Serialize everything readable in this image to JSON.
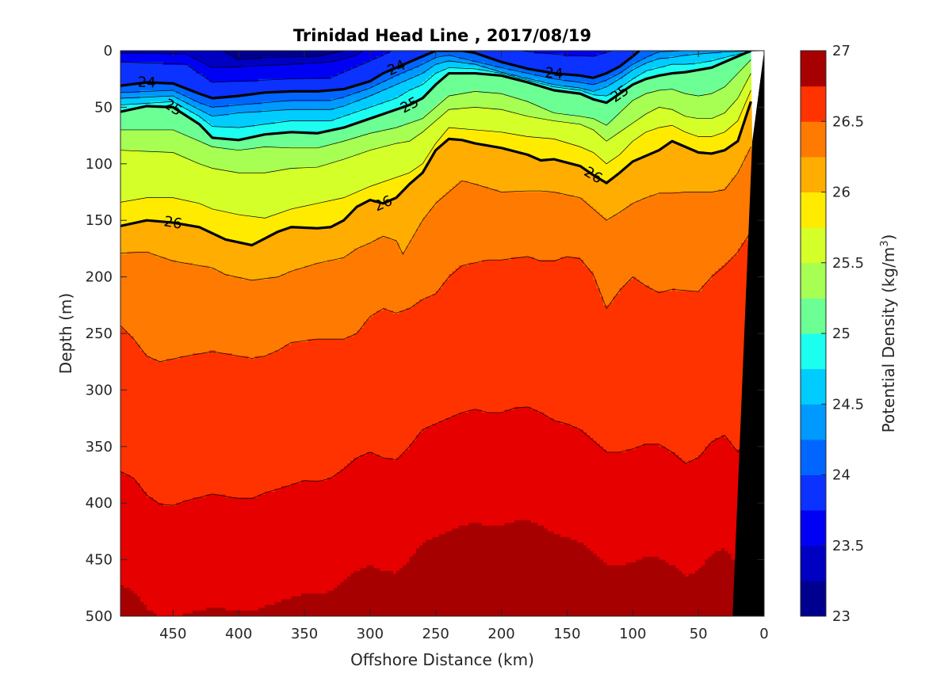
{
  "chart_data": {
    "type": "contourf",
    "title": "Trinidad Head Line , 2017/08/19",
    "xlabel": "Offshore Distance (km)",
    "ylabel": "Depth (m)",
    "colorbar_label": "Potential Density (kg/m³)",
    "colorbar_label_base": "Potential Density (kg/m",
    "colorbar_label_sup": "3",
    "colorbar_label_close": ")",
    "xlim": [
      490,
      0
    ],
    "ylim": [
      0,
      500
    ],
    "y_reversed": true,
    "x_reversed": true,
    "xticks": [
      450,
      400,
      350,
      300,
      250,
      200,
      150,
      100,
      50,
      0
    ],
    "yticks": [
      0,
      50,
      100,
      150,
      200,
      250,
      300,
      350,
      400,
      450,
      500
    ],
    "clim": [
      23,
      27
    ],
    "colorbar_ticks": [
      "23",
      "23.5",
      "24",
      "24.5",
      "25",
      "25.5",
      "26",
      "26.5",
      "27"
    ],
    "colorbar_tick_values": [
      23,
      23.5,
      24,
      24.5,
      25,
      25.5,
      26,
      26.5,
      27
    ],
    "levels": [
      23,
      23.25,
      23.5,
      23.75,
      24,
      24.25,
      24.5,
      24.75,
      25,
      25.25,
      25.5,
      25.75,
      26,
      26.25,
      26.5,
      26.75,
      27
    ],
    "level_colors": [
      "#00008f",
      "#0000c2",
      "#0000f5",
      "#0b32ff",
      "#0066ff",
      "#0099ff",
      "#00ccff",
      "#1cfff0",
      "#6bff94",
      "#a6ff52",
      "#d4ff29",
      "#ffeb00",
      "#ffad00",
      "#ff7a00",
      "#ff3300",
      "#e60000",
      "#a60000"
    ],
    "bottom_mask_color": "#000000",
    "contour_lines": [
      {
        "level": 24,
        "label": "24",
        "x": [
          490,
          470,
          450,
          430,
          420,
          400,
          380,
          360,
          340,
          320,
          300,
          290,
          280,
          270,
          260,
          250,
          240,
          230,
          220,
          210,
          200,
          180,
          160,
          140,
          130,
          120,
          110,
          100,
          95
        ],
        "y": [
          31,
          28,
          29,
          38,
          42,
          40,
          37,
          36,
          36,
          34,
          27,
          20,
          15,
          10,
          5,
          0,
          0,
          0,
          2,
          6,
          10,
          16,
          20,
          22,
          24,
          20,
          14,
          5,
          0
        ]
      },
      {
        "level": 25,
        "label": "25",
        "x": [
          490,
          470,
          450,
          430,
          420,
          400,
          380,
          360,
          340,
          320,
          300,
          290,
          280,
          270,
          260,
          250,
          240,
          220,
          200,
          180,
          160,
          140,
          130,
          120,
          110,
          100,
          90,
          80,
          70,
          60,
          50,
          40,
          30,
          20,
          10
        ],
        "y": [
          54,
          49,
          50,
          65,
          77,
          79,
          74,
          72,
          73,
          68,
          60,
          56,
          52,
          48,
          42,
          30,
          20,
          20,
          22,
          28,
          35,
          38,
          43,
          46,
          38,
          30,
          25,
          22,
          20,
          19,
          17,
          15,
          10,
          5,
          0
        ]
      },
      {
        "level": 26,
        "label": "26",
        "x": [
          490,
          470,
          450,
          430,
          410,
          390,
          380,
          370,
          360,
          340,
          330,
          320,
          310,
          300,
          290,
          280,
          270,
          260,
          250,
          240,
          230,
          220,
          200,
          180,
          170,
          160,
          140,
          130,
          120,
          110,
          100,
          90,
          80,
          70,
          60,
          50,
          40,
          30,
          20,
          10
        ],
        "y": [
          155,
          150,
          152,
          156,
          167,
          172,
          166,
          160,
          156,
          157,
          156,
          150,
          138,
          132,
          135,
          130,
          118,
          108,
          88,
          78,
          79,
          82,
          86,
          92,
          97,
          96,
          102,
          110,
          117,
          108,
          98,
          93,
          88,
          80,
          85,
          90,
          91,
          88,
          80,
          45
        ]
      }
    ]
  }
}
